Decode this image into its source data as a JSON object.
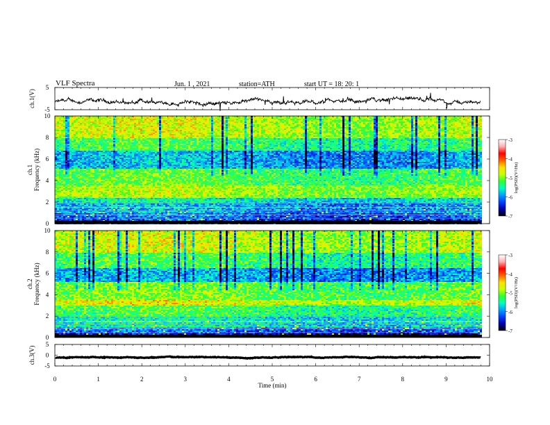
{
  "header": {
    "title": "VLF Spectra",
    "date": "Jun. 1 , 2021",
    "station": "station=ATH",
    "start": "start UT = 18: 20: 1"
  },
  "colors": {
    "colormap": [
      "#000000",
      "#0000aa",
      "#0040ff",
      "#00a0ff",
      "#00ffc0",
      "#30ff30",
      "#c8ff00",
      "#ffe000",
      "#ff6000",
      "#ff0000",
      "#ffb0b0",
      "#ffffff"
    ]
  },
  "chart_data": [
    {
      "type": "line",
      "name": "ch1-waveform",
      "ylabel": "ch.1(V)",
      "ylim": [
        -5,
        5
      ],
      "yticks": [
        "5",
        "-5"
      ],
      "xlim": [
        0,
        10
      ],
      "level": -1.5,
      "amplitude": 1.0
    },
    {
      "type": "heatmap",
      "name": "ch1-spectrogram",
      "ylabel_top": "ch.1",
      "ylabel": "Frequency (kHz)",
      "ylim": [
        0,
        10
      ],
      "yticks": [
        "0",
        "2",
        "4",
        "6",
        "8",
        "10"
      ],
      "xlim": [
        0,
        9.8
      ],
      "colorbar": {
        "label": "log(PSD)(V²/Hz)",
        "range": [
          -7,
          -3
        ],
        "ticks": [
          "-3",
          "-4",
          "-5",
          "-6",
          "-7"
        ]
      },
      "bands": [
        {
          "from": 0.0,
          "to": 0.4,
          "value": -6.6
        },
        {
          "from": 0.4,
          "to": 1.0,
          "value": -6.2
        },
        {
          "from": 1.0,
          "to": 2.0,
          "value": -5.9
        },
        {
          "from": 2.0,
          "to": 2.4,
          "value": -5.6
        },
        {
          "from": 2.4,
          "to": 3.6,
          "value": -4.9
        },
        {
          "from": 3.6,
          "to": 5.2,
          "value": -5.2
        },
        {
          "from": 5.2,
          "to": 6.8,
          "value": -5.9
        },
        {
          "from": 6.8,
          "to": 8.0,
          "value": -5.3
        },
        {
          "from": 8.0,
          "to": 10.0,
          "value": -4.8
        }
      ]
    },
    {
      "type": "heatmap",
      "name": "ch2-spectrogram",
      "ylabel_top": "ch.2",
      "ylabel": "Frequency (kHz)",
      "ylim": [
        0,
        10
      ],
      "yticks": [
        "0",
        "2",
        "4",
        "6",
        "8",
        "10"
      ],
      "xlim": [
        0,
        9.8
      ],
      "colorbar": {
        "label": "log(PSD)(V²/Hz)",
        "range": [
          -7,
          -3
        ],
        "ticks": [
          "-3",
          "-4",
          "-5",
          "-6",
          "-7"
        ]
      },
      "bands": [
        {
          "from": 0.0,
          "to": 0.4,
          "value": -6.6
        },
        {
          "from": 0.4,
          "to": 1.0,
          "value": -6.2
        },
        {
          "from": 1.0,
          "to": 2.0,
          "value": -5.6
        },
        {
          "from": 2.0,
          "to": 3.0,
          "value": -5.3
        },
        {
          "from": 3.0,
          "to": 3.6,
          "value": -4.7
        },
        {
          "from": 3.6,
          "to": 5.2,
          "value": -5.1
        },
        {
          "from": 5.2,
          "to": 6.6,
          "value": -5.9
        },
        {
          "from": 6.6,
          "to": 8.0,
          "value": -5.3
        },
        {
          "from": 8.0,
          "to": 10.0,
          "value": -4.8
        }
      ]
    },
    {
      "type": "line",
      "name": "ch3-waveform",
      "ylabel": "ch.3(V)",
      "ylim": [
        -5,
        5
      ],
      "yticks": [
        "5",
        "0",
        "-5"
      ],
      "xlim": [
        0,
        10
      ],
      "level": -1.0,
      "amplitude": 0.2
    }
  ],
  "xaxis": {
    "label": "Time (min)",
    "ticks": [
      "0",
      "1",
      "2",
      "3",
      "4",
      "5",
      "6",
      "7",
      "8",
      "9",
      "10"
    ],
    "xlim": [
      0,
      10
    ]
  }
}
